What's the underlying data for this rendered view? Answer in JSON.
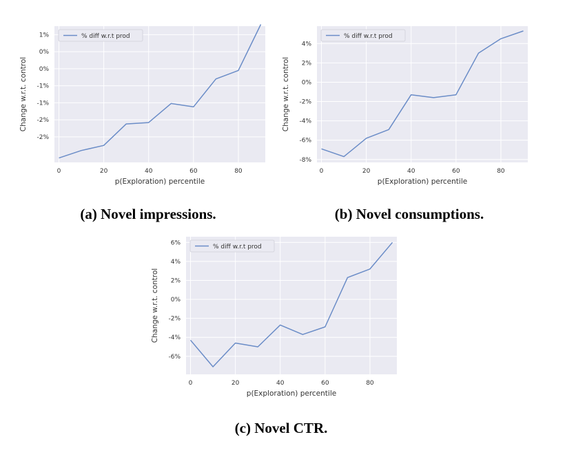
{
  "figure": {
    "captions": {
      "a": "(a) Novel impressions.",
      "b": "(b) Novel consumptions.",
      "c": "(c) Novel CTR."
    }
  },
  "colors": {
    "series": "#6a8cc7",
    "plot_background": "#eaeaf2",
    "grid": "#ffffff"
  },
  "chart_data": [
    {
      "id": "a",
      "type": "line",
      "xlabel": "p(Exploration) percentile",
      "ylabel": "Change w.r.t. control",
      "xlim": [
        -2,
        92
      ],
      "ylim": [
        -2.75,
        1.25
      ],
      "xticks": [
        0,
        20,
        40,
        60,
        80
      ],
      "xtick_labels": [
        "0",
        "20",
        "40",
        "60",
        "80"
      ],
      "yticks": [
        1.0,
        0.5,
        0.0,
        -0.5,
        -1.0,
        -1.5,
        -2.0
      ],
      "ytick_labels": [
        "1%",
        "0%",
        "0%",
        "-1%",
        "-1%",
        "-2%",
        "-2%"
      ],
      "grid": true,
      "legend_position": "top-left",
      "series": [
        {
          "name": "% diff w.r.t prod",
          "x": [
            0,
            10,
            20,
            30,
            40,
            50,
            60,
            70,
            80,
            90
          ],
          "y": [
            -2.62,
            -2.4,
            -2.25,
            -1.62,
            -1.58,
            -1.02,
            -1.12,
            -0.3,
            -0.05,
            1.3
          ]
        }
      ]
    },
    {
      "id": "b",
      "type": "line",
      "xlabel": "p(Exploration) percentile",
      "ylabel": "Change w.r.t. control",
      "xlim": [
        -2,
        92
      ],
      "ylim": [
        -8.3,
        5.8
      ],
      "xticks": [
        0,
        20,
        40,
        60,
        80
      ],
      "xtick_labels": [
        "0",
        "20",
        "40",
        "60",
        "80"
      ],
      "yticks": [
        4,
        2,
        0,
        -2,
        -4,
        -6,
        -8
      ],
      "ytick_labels": [
        "4%",
        "2%",
        "0%",
        "-2%",
        "-4%",
        "-6%",
        "-8%"
      ],
      "grid": true,
      "legend_position": "top-left",
      "series": [
        {
          "name": "% diff w.r.t prod",
          "x": [
            0,
            10,
            20,
            30,
            40,
            50,
            60,
            70,
            80,
            90
          ],
          "y": [
            -6.9,
            -7.7,
            -5.8,
            -4.9,
            -1.3,
            -1.6,
            -1.3,
            3.0,
            4.5,
            5.3
          ]
        }
      ]
    },
    {
      "id": "c",
      "type": "line",
      "xlabel": "p(Exploration) percentile",
      "ylabel": "Change w.r.t. control",
      "xlim": [
        -2,
        92
      ],
      "ylim": [
        -7.9,
        6.6
      ],
      "xticks": [
        0,
        20,
        40,
        60,
        80
      ],
      "xtick_labels": [
        "0",
        "20",
        "40",
        "60",
        "80"
      ],
      "yticks": [
        6,
        4,
        2,
        0,
        -2,
        -4,
        -6
      ],
      "ytick_labels": [
        "6%",
        "4%",
        "2%",
        "0%",
        "-2%",
        "-4%",
        "-6%"
      ],
      "grid": true,
      "legend_position": "top-left",
      "series": [
        {
          "name": "% diff w.r.t prod",
          "x": [
            0,
            10,
            20,
            30,
            40,
            50,
            60,
            70,
            80,
            90
          ],
          "y": [
            -4.3,
            -7.1,
            -4.6,
            -5.0,
            -2.7,
            -3.7,
            -2.9,
            2.3,
            3.2,
            6.0
          ]
        }
      ]
    }
  ]
}
